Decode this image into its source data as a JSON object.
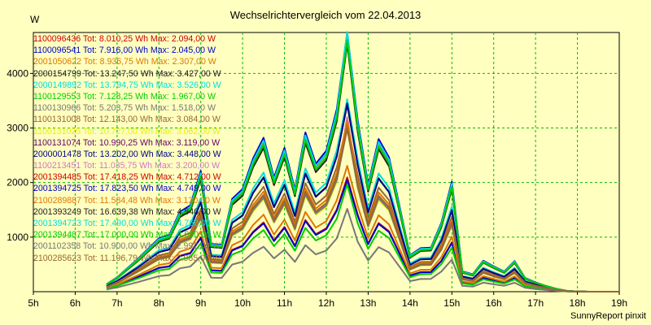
{
  "chart_data": {
    "type": "line",
    "title": "Wechselrichtervergleich vom 22.04.2013",
    "ylabel": "W",
    "xlabel": "",
    "credit": "SunnyReport pinxit",
    "x_ticks": [
      "5h",
      "6h",
      "7h",
      "8h",
      "9h",
      "10h",
      "11h",
      "12h",
      "13h",
      "14h",
      "15h",
      "16h",
      "17h",
      "18h",
      "19h"
    ],
    "y_ticks": [
      1000,
      2000,
      3000,
      4000
    ],
    "xlim": [
      5,
      19
    ],
    "ylim": [
      0,
      4750
    ],
    "grid": true,
    "legend_position": "top-left",
    "x": [
      6.75,
      7.0,
      7.5,
      8.0,
      8.25,
      8.5,
      8.75,
      9.0,
      9.25,
      9.5,
      9.75,
      10.0,
      10.25,
      10.5,
      10.75,
      11.0,
      11.25,
      11.5,
      11.75,
      12.0,
      12.25,
      12.5,
      12.75,
      13.0,
      13.25,
      13.5,
      13.75,
      14.0,
      14.25,
      14.5,
      14.75,
      15.0,
      15.25,
      15.5,
      15.75,
      16.0,
      16.25,
      16.5,
      16.75,
      17.0,
      17.25,
      17.5,
      17.75,
      18.0,
      18.25,
      18.5,
      18.75,
      19.0
    ],
    "series": [
      {
        "name": "1100096436 Tot: 8.010,25 Wh Max: 2.094,00 W",
        "color": "#cc0000",
        "values": [
          62,
          118,
          272,
          440,
          468,
          658,
          712,
          995,
          394,
          386,
          765,
          846,
          1097,
          1268,
          940,
          1185,
          842,
          1312,
          1054,
          1161,
          1505,
          2094,
          1410,
          881,
          1258,
          1106,
          704,
          299,
          359,
          363,
          568,
          906,
          168,
          143,
          255,
          208,
          166,
          253,
          113,
          76,
          48,
          23,
          7,
          2,
          0,
          0,
          0,
          0
        ]
      },
      {
        "name": "1100096541 Tot: 7.916,00 Wh Max: 2.045,00 W",
        "color": "#0000cc",
        "values": [
          61,
          116,
          268,
          434,
          462,
          650,
          703,
          982,
          389,
          381,
          755,
          835,
          1083,
          1252,
          928,
          1170,
          832,
          1295,
          1040,
          1146,
          1486,
          2045,
          1392,
          870,
          1242,
          1092,
          695,
          295,
          354,
          358,
          561,
          894,
          166,
          141,
          252,
          205,
          164,
          250,
          111,
          75,
          47,
          23,
          7,
          2,
          0,
          0,
          0,
          0
        ]
      },
      {
        "name": "2001050622 Tot: 8.936,75 Wh Max: 2.307,00 W",
        "color": "#dd7700",
        "values": [
          69,
          131,
          302,
          490,
          521,
          733,
          793,
          1108,
          439,
          430,
          852,
          942,
          1222,
          1412,
          1047,
          1320,
          938,
          1461,
          1174,
          1293,
          1676,
          2307,
          1570,
          981,
          1401,
          1232,
          784,
          333,
          400,
          404,
          633,
          1009,
          187,
          159,
          284,
          232,
          185,
          282,
          126,
          85,
          53,
          26,
          8,
          2,
          0,
          0,
          0,
          0
        ]
      },
      {
        "name": "2000154799 Tot: 13.247,50 Wh Max: 3.427,00 W",
        "color": "#222222",
        "values": [
          103,
          195,
          449,
          727,
          774,
          1088,
          1177,
          1645,
          651,
          638,
          1265,
          1399,
          1814,
          2097,
          1554,
          1960,
          1392,
          2169,
          1743,
          1920,
          2488,
          3427,
          2332,
          1457,
          2080,
          1829,
          1164,
          494,
          593,
          600,
          939,
          1498,
          278,
          236,
          422,
          344,
          274,
          418,
          187,
          126,
          79,
          38,
          12,
          3,
          0,
          0,
          0,
          0
        ]
      },
      {
        "name": "2000149892 Tot: 13.794,75 Wh Max: 3.526,00 W",
        "color": "#00dddd",
        "values": [
          107,
          203,
          468,
          758,
          806,
          1133,
          1226,
          1713,
          678,
          665,
          1318,
          1457,
          1889,
          2183,
          1619,
          2041,
          1450,
          2259,
          1815,
          1999,
          2591,
          3526,
          2429,
          1517,
          2166,
          1904,
          1213,
          515,
          618,
          625,
          978,
          1560,
          289,
          246,
          439,
          358,
          286,
          436,
          195,
          131,
          82,
          40,
          12,
          3,
          0,
          0,
          0,
          0
        ]
      },
      {
        "name": "1100129553 Tot: 7.128,25 Wh Max: 1.967,00 W",
        "color": "#00cc00",
        "values": [
          55,
          105,
          242,
          392,
          417,
          585,
          633,
          885,
          350,
          344,
          681,
          753,
          976,
          1129,
          836,
          1054,
          749,
          1167,
          938,
          1033,
          1339,
          1967,
          1255,
          784,
          1119,
          984,
          626,
          266,
          319,
          323,
          505,
          806,
          150,
          127,
          227,
          185,
          148,
          225,
          101,
          68,
          42,
          20,
          6,
          2,
          0,
          0,
          0,
          0
        ]
      },
      {
        "name": "1100130966 Tot: 5.203,75 Wh Max: 1.518,00 W",
        "color": "#777777",
        "values": [
          40,
          77,
          176,
          286,
          304,
          427,
          462,
          646,
          256,
          251,
          497,
          549,
          712,
          824,
          610,
          770,
          547,
          852,
          684,
          754,
          977,
          1518,
          916,
          572,
          817,
          718,
          457,
          194,
          233,
          236,
          369,
          588,
          109,
          93,
          166,
          135,
          108,
          164,
          73,
          49,
          31,
          15,
          5,
          1,
          0,
          0,
          0,
          0
        ]
      },
      {
        "name": "1100131008 Tot: 12.143,00 Wh Max: 3.084,00 W",
        "color": "#996633",
        "values": [
          94,
          179,
          411,
          666,
          709,
          997,
          1079,
          1508,
          597,
          585,
          1159,
          1282,
          1663,
          1923,
          1425,
          1797,
          1276,
          1988,
          1597,
          1760,
          2281,
          3084,
          2138,
          1336,
          1907,
          1677,
          1067,
          453,
          544,
          550,
          861,
          1373,
          255,
          217,
          387,
          315,
          252,
          383,
          171,
          115,
          72,
          35,
          11,
          3,
          0,
          0,
          0,
          0
        ]
      },
      {
        "name": "1100131025 Tot: 10.727,00 Wh Max: 3.062,00 W",
        "color": "#eeee00",
        "values": [
          83,
          158,
          363,
          589,
          626,
          881,
          953,
          1332,
          527,
          517,
          1024,
          1133,
          1469,
          1698,
          1259,
          1587,
          1127,
          1756,
          1411,
          1555,
          2015,
          3062,
          1889,
          1180,
          1684,
          1481,
          943,
          400,
          480,
          486,
          760,
          1213,
          225,
          191,
          342,
          279,
          222,
          338,
          151,
          102,
          64,
          31,
          9,
          3,
          0,
          0,
          0,
          0
        ]
      },
      {
        "name": "1100131074 Tot: 10.990,25 Wh Max: 3.119,00 W",
        "color": "#660066",
        "values": [
          85,
          162,
          372,
          603,
          642,
          903,
          976,
          1365,
          540,
          530,
          1049,
          1161,
          1505,
          1740,
          1290,
          1626,
          1155,
          1799,
          1446,
          1593,
          2064,
          3119,
          1935,
          1209,
          1726,
          1518,
          966,
          410,
          492,
          498,
          779,
          1243,
          230,
          196,
          350,
          285,
          228,
          347,
          155,
          104,
          65,
          32,
          10,
          3,
          0,
          0,
          0,
          0
        ]
      },
      {
        "name": "2000001478 Tot: 13.202,00 Wh Max: 3.448,00 W",
        "color": "#000088",
        "values": [
          102,
          194,
          447,
          725,
          771,
          1084,
          1173,
          1640,
          649,
          636,
          1261,
          1394,
          1808,
          2090,
          1549,
          1953,
          1387,
          2162,
          1737,
          1914,
          2480,
          3448,
          2325,
          1452,
          2073,
          1823,
          1160,
          492,
          591,
          598,
          936,
          1493,
          277,
          235,
          421,
          343,
          273,
          416,
          186,
          126,
          79,
          38,
          12,
          3,
          0,
          0,
          0,
          0
        ]
      },
      {
        "name": "1100213451 Tot: 11.035,75 Wh Max: 3.200,00 W",
        "color": "#cc77cc",
        "values": [
          86,
          162,
          373,
          606,
          644,
          906,
          980,
          1370,
          542,
          532,
          1053,
          1165,
          1511,
          1747,
          1295,
          1633,
          1159,
          1807,
          1452,
          1599,
          2072,
          3200,
          1943,
          1214,
          1733,
          1524,
          970,
          412,
          494,
          500,
          782,
          1248,
          231,
          197,
          351,
          286,
          229,
          348,
          156,
          105,
          66,
          32,
          10,
          3,
          0,
          0,
          0,
          0
        ]
      },
      {
        "name": "2001394485 Tot: 17.418,25 Wh Max: 4.712,00 W",
        "color": "#cc0000",
        "values": [
          135,
          256,
          590,
          956,
          1017,
          1430,
          1547,
          2163,
          856,
          839,
          1663,
          1839,
          2385,
          2757,
          2044,
          2577,
          1830,
          2852,
          2292,
          2525,
          3272,
          4712,
          3067,
          1916,
          2735,
          2405,
          1531,
          650,
          780,
          789,
          1235,
          1970,
          365,
          310,
          555,
          453,
          360,
          549,
          246,
          166,
          104,
          50,
          15,
          4,
          0,
          0,
          0,
          0
        ]
      },
      {
        "name": "2001394725 Tot: 17.823,50 Wh Max: 4.749,00 W",
        "color": "#0000cc",
        "values": [
          138,
          262,
          603,
          979,
          1041,
          1464,
          1583,
          2213,
          876,
          859,
          1702,
          1882,
          2441,
          2821,
          2091,
          2637,
          1873,
          2918,
          2345,
          2583,
          3348,
          4749,
          3138,
          1961,
          2798,
          2461,
          1566,
          665,
          798,
          807,
          1264,
          2016,
          374,
          318,
          568,
          463,
          369,
          562,
          251,
          170,
          106,
          52,
          16,
          4,
          0,
          0,
          0,
          0
        ]
      },
      {
        "name": "2100289887 Tot: 11.584,48 Wh Max: 3.130,00 W",
        "color": "#dd7700",
        "values": [
          90,
          170,
          392,
          636,
          676,
          951,
          1029,
          1439,
          569,
          558,
          1106,
          1223,
          1586,
          1834,
          1359,
          1714,
          1217,
          1896,
          1524,
          1679,
          2176,
          3130,
          2039,
          1274,
          1819,
          1599,
          1018,
          432,
          519,
          524,
          821,
          1310,
          243,
          206,
          369,
          301,
          240,
          365,
          163,
          110,
          69,
          33,
          10,
          3,
          0,
          0,
          0,
          0
        ]
      },
      {
        "name": "2001393249 Tot: 16.639,38 Wh Max: 4.540,00 W",
        "color": "#222222",
        "values": [
          129,
          245,
          563,
          914,
          972,
          1367,
          1478,
          2066,
          818,
          802,
          1589,
          1757,
          2279,
          2634,
          1952,
          2462,
          1749,
          2724,
          2190,
          2412,
          3126,
          4540,
          2930,
          1831,
          2612,
          2298,
          1462,
          621,
          745,
          753,
          1180,
          1882,
          349,
          296,
          530,
          432,
          344,
          525,
          235,
          158,
          99,
          48,
          15,
          4,
          0,
          0,
          0,
          0
        ]
      },
      {
        "name": "2001394723 Tot: 17.490,00 Wh Max: 4.760,00 W",
        "color": "#00dddd",
        "values": [
          136,
          257,
          592,
          960,
          1021,
          1436,
          1553,
          2172,
          859,
          843,
          1670,
          1847,
          2395,
          2769,
          2052,
          2588,
          1838,
          2864,
          2301,
          2535,
          3285,
          4760,
          3080,
          1924,
          2746,
          2415,
          1537,
          653,
          783,
          792,
          1240,
          1978,
          367,
          311,
          557,
          454,
          362,
          552,
          247,
          166,
          104,
          50,
          16,
          4,
          0,
          0,
          0,
          0
        ]
      },
      {
        "name": "2001394487 Tot: 17.000,00 Wh Max: 4.600,00 W",
        "color": "#00cc00",
        "values": [
          132,
          250,
          575,
          933,
          992,
          1396,
          1510,
          2111,
          836,
          819,
          1623,
          1795,
          2328,
          2691,
          1995,
          2515,
          1786,
          2783,
          2237,
          2464,
          3193,
          4600,
          2993,
          1870,
          2669,
          2347,
          1494,
          634,
          761,
          770,
          1205,
          1923,
          356,
          302,
          541,
          442,
          352,
          536,
          240,
          162,
          101,
          49,
          15,
          4,
          0,
          0,
          0,
          0
        ]
      },
      {
        "name": "2001102358 Tot: 10.900,00 Wh Max: 2.992,00 W",
        "color": "#777777",
        "values": [
          85,
          160,
          369,
          598,
          636,
          895,
          968,
          1353,
          536,
          525,
          1040,
          1150,
          1492,
          1725,
          1278,
          1612,
          1145,
          1784,
          1434,
          1580,
          2047,
          2992,
          1918,
          1199,
          1711,
          1505,
          958,
          406,
          488,
          494,
          772,
          1232,
          228,
          194,
          347,
          283,
          226,
          344,
          154,
          104,
          65,
          31,
          10,
          3,
          0,
          0,
          0,
          0
        ]
      },
      {
        "name": "2100285623 Tot: 11.196,79 Wh Max: 2.985,00 W",
        "color": "#996633",
        "values": [
          87,
          165,
          379,
          614,
          653,
          919,
          994,
          1390,
          550,
          539,
          1068,
          1182,
          1533,
          1772,
          1313,
          1656,
          1176,
          1832,
          1473,
          1623,
          2102,
          2985,
          1970,
          1231,
          1758,
          1546,
          984,
          417,
          501,
          507,
          793,
          1266,
          234,
          199,
          356,
          291,
          232,
          353,
          158,
          107,
          67,
          32,
          10,
          3,
          0,
          0,
          0,
          0
        ]
      }
    ]
  }
}
